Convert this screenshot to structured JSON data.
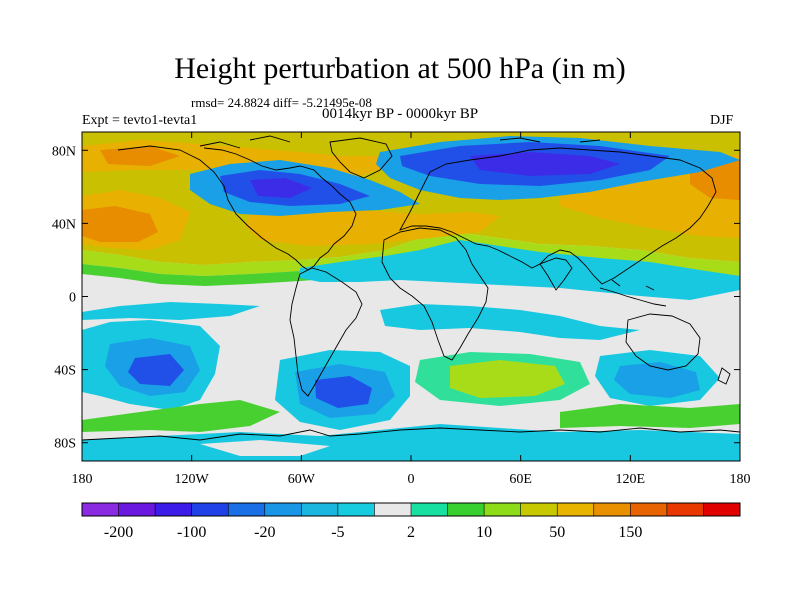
{
  "title": "Height perturbation at 500 hPa (in m)",
  "stats_line": "rmsd= 24.8824 diff= -5.21495e-08",
  "period": "0014kyr BP - 0000kyr BP",
  "experiment": "Expt = tevto1-tevta1",
  "season": "DJF",
  "map": {
    "projection": "cylindrical-equidistant",
    "lat_range": [
      -90,
      90
    ],
    "lon_range": [
      -180,
      180
    ],
    "lat_ticks": [
      "80N",
      "40N",
      "0",
      "40S",
      "80S"
    ],
    "lon_ticks": [
      "180",
      "120W",
      "60W",
      "0",
      "60E",
      "120E",
      "180"
    ]
  },
  "colorbar": {
    "labels": [
      "-200",
      "-100",
      "-20",
      "-5",
      "2",
      "10",
      "50",
      "150"
    ],
    "colors": [
      "#8a2be2",
      "#6a18e0",
      "#3c1ce8",
      "#2040e8",
      "#1a6ee6",
      "#1a96e6",
      "#1ab6e0",
      "#18cce0",
      "#e8e8e8",
      "#18e0a0",
      "#38d030",
      "#8edc18",
      "#c8c800",
      "#e8b400",
      "#e89000",
      "#e86400",
      "#e83800",
      "#e00000"
    ]
  },
  "fill_colors": {
    "neutral": "#e8e8e8",
    "neg_cyan": "#18c8e0",
    "neg_sky": "#1aa0e6",
    "neg_blue": "#2050e8",
    "neg_deep": "#3c2ce8",
    "neg_violet": "#6a28e0",
    "pos_mint": "#30e09a",
    "pos_green": "#48d030",
    "pos_lime": "#a8dc18",
    "pos_olive": "#c8c000",
    "pos_gold": "#e8b000",
    "pos_orange": "#e88c00",
    "coast": "#000000"
  }
}
